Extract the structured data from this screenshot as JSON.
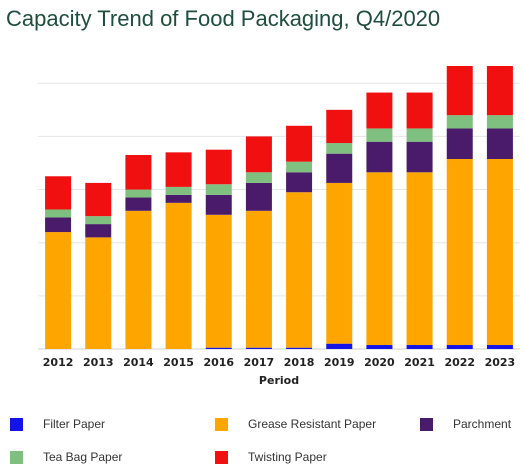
{
  "chart_data": {
    "type": "bar",
    "stacked": true,
    "title": "Capacity Trend of Food Packaging, Q4/2020",
    "xlabel": "Period",
    "ylabel": "",
    "ylim": [
      0,
      1.08
    ],
    "grid": true,
    "y_tick_labels_shown": false,
    "legend_position": "bottom",
    "categories": [
      "2012",
      "2013",
      "2014",
      "2015",
      "2016",
      "2017",
      "2018",
      "2019",
      "2020",
      "2021",
      "2022",
      "2023"
    ],
    "series": [
      {
        "name": "Filter Paper",
        "color": "#1414e6",
        "values": [
          0.0,
          0.0,
          0.0,
          0.0,
          0.005,
          0.005,
          0.005,
          0.02,
          0.015,
          0.015,
          0.015,
          0.015
        ]
      },
      {
        "name": "Grease Resistant Paper",
        "color": "#ffa500",
        "values": [
          0.44,
          0.42,
          0.52,
          0.55,
          0.5,
          0.515,
          0.585,
          0.605,
          0.65,
          0.65,
          0.7,
          0.7
        ]
      },
      {
        "name": "Parchment",
        "color": "#4b1b6b",
        "values": [
          0.055,
          0.05,
          0.05,
          0.03,
          0.075,
          0.105,
          0.075,
          0.11,
          0.115,
          0.115,
          0.115,
          0.115
        ]
      },
      {
        "name": "Tea Bag Paper",
        "color": "#7fbf7f",
        "values": [
          0.03,
          0.03,
          0.03,
          0.03,
          0.04,
          0.04,
          0.04,
          0.04,
          0.05,
          0.05,
          0.05,
          0.05
        ]
      },
      {
        "name": "Twisting Paper",
        "color": "#f01010",
        "values": [
          0.125,
          0.125,
          0.13,
          0.13,
          0.13,
          0.135,
          0.135,
          0.125,
          0.135,
          0.135,
          0.185,
          0.185
        ]
      }
    ]
  }
}
